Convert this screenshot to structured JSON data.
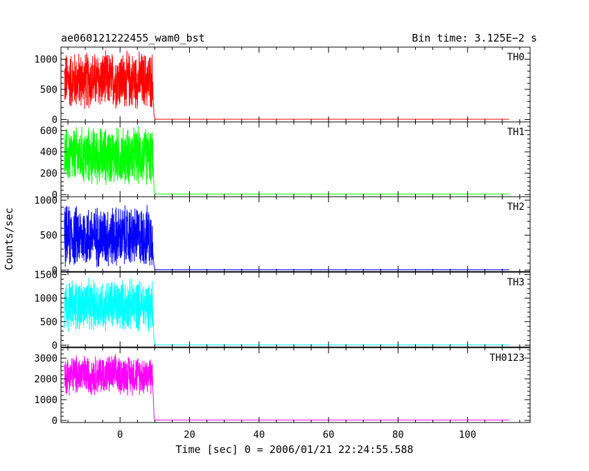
{
  "chart_data": {
    "type": "line",
    "title": "ae060121222455_wam0_bst",
    "subtitle": "Bin time: 3.125E−2 s",
    "xlabel": "Time [sec] 0 = 2006/01/21 22:24:55.588",
    "ylabel": "Counts/sec",
    "xlim": [
      -17,
      118
    ],
    "x_ticks": [
      0,
      20,
      40,
      60,
      80,
      100
    ],
    "grid": false,
    "burst_end_sec": 10,
    "panels": [
      {
        "name": "TH0",
        "color": "#ff0000",
        "ylim": [
          -40,
          1200
        ],
        "y_ticks": [
          0,
          500,
          1000
        ],
        "burst_start": -16,
        "burst_end": 9.5,
        "burst_mean": 650,
        "burst_range": [
          100,
          1150
        ],
        "background": 5
      },
      {
        "name": "TH1",
        "color": "#00ff00",
        "ylim": [
          -20,
          680
        ],
        "y_ticks": [
          0,
          200,
          400,
          600
        ],
        "burst_start": -16,
        "burst_end": 9.5,
        "burst_mean": 360,
        "burst_range": [
          60,
          660
        ],
        "background": 5
      },
      {
        "name": "TH2",
        "color": "#0000ff",
        "ylim": [
          -20,
          1050
        ],
        "y_ticks": [
          0,
          500,
          1000
        ],
        "burst_start": -16,
        "burst_end": 9.5,
        "burst_mean": 480,
        "burst_range": [
          40,
          1020
        ],
        "background": 5
      },
      {
        "name": "TH3",
        "color": "#00ffff",
        "ylim": [
          -40,
          1550
        ],
        "y_ticks": [
          0,
          500,
          1000,
          1500
        ],
        "burst_start": -16,
        "burst_end": 9.5,
        "burst_mean": 850,
        "burst_range": [
          280,
          1500
        ],
        "background": 5
      },
      {
        "name": "TH0123",
        "color": "#ff00ff",
        "ylim": [
          -100,
          3500
        ],
        "y_ticks": [
          0,
          1000,
          2000,
          3000
        ],
        "burst_start": -16,
        "burst_end": 9.5,
        "burst_mean": 2200,
        "burst_range": [
          1200,
          3300
        ],
        "background": 20
      }
    ]
  }
}
